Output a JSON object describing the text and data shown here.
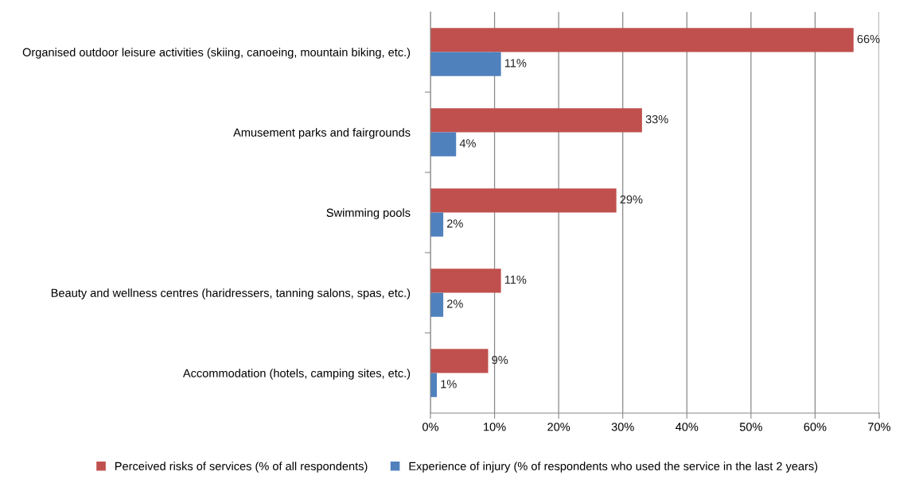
{
  "chart_data": {
    "type": "bar",
    "orientation": "horizontal",
    "categories": [
      "Organised outdoor leisure activities (skiing, canoeing, mountain biking, etc.)",
      "Amusement parks and fairgrounds",
      "Swimming pools",
      "Beauty and wellness centres (haridressers, tanning salons, spas, etc.)",
      "Accommodation (hotels, camping sites, etc.)"
    ],
    "series": [
      {
        "name": "Perceived risks of services (% of all respondents)",
        "color": "#c0504d",
        "values": [
          66,
          33,
          29,
          11,
          9
        ],
        "value_labels": [
          "66%",
          "33%",
          "29%",
          "11%",
          "9%"
        ]
      },
      {
        "name": "Experience of injury (% of respondents who used the service in the last 2 years)",
        "color": "#4f81bd",
        "values": [
          11,
          4,
          2,
          2,
          1
        ],
        "value_labels": [
          "11%",
          "4%",
          "2%",
          "2%",
          "1%"
        ]
      }
    ],
    "xlim": [
      0,
      70
    ],
    "xticks": [
      {
        "value": 0,
        "label": "0%"
      },
      {
        "value": 10,
        "label": "10%"
      },
      {
        "value": 20,
        "label": "20%"
      },
      {
        "value": 30,
        "label": "30%"
      },
      {
        "value": 40,
        "label": "40%"
      },
      {
        "value": 50,
        "label": "50%"
      },
      {
        "value": 60,
        "label": "60%"
      },
      {
        "value": 70,
        "label": "70%"
      }
    ],
    "grid": "x",
    "legend": "bottom"
  }
}
